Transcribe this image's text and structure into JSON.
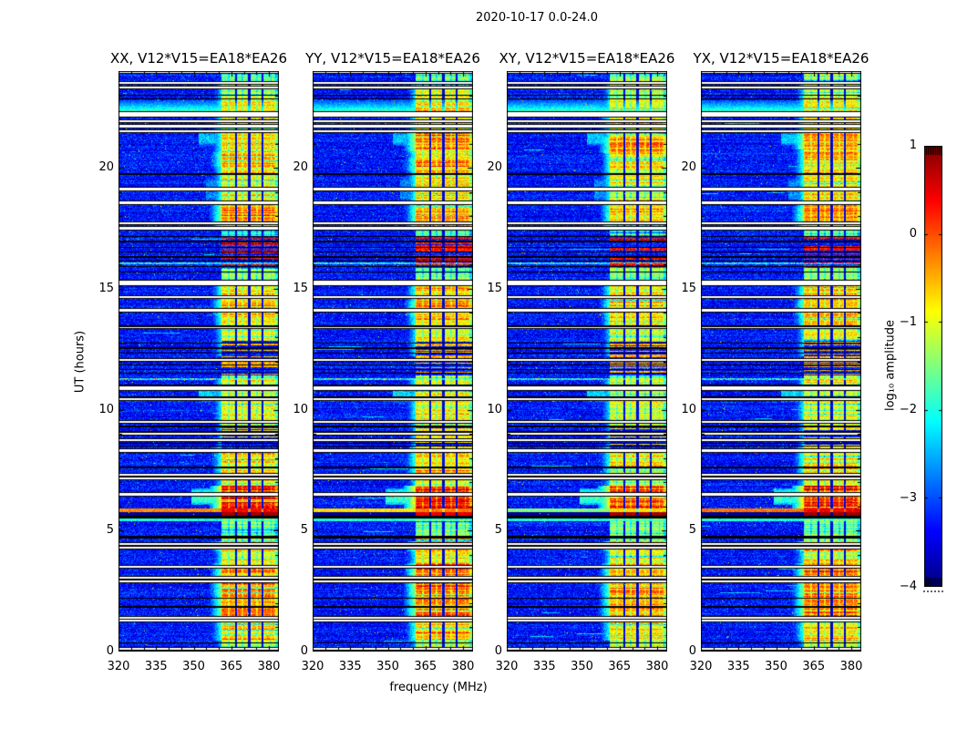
{
  "figure": {
    "title": "2020-10-17 0.0-24.0"
  },
  "chart_data": {
    "type": "heatmap",
    "title": "2020-10-17 0.0-24.0",
    "xlabel": "frequency (MHz)",
    "ylabel": "UT (hours)",
    "x_range": [
      320,
      384
    ],
    "y_range": [
      0,
      24
    ],
    "x_ticks": [
      320,
      335,
      350,
      365,
      380
    ],
    "x_minor_step": 5,
    "y_ticks": [
      0,
      5,
      10,
      15,
      20
    ],
    "y_minor_step": 1,
    "grid": false,
    "colormap": "jet",
    "colorbar": {
      "label": "log₁₀ amplitude",
      "vmin": -4,
      "vmax": 1,
      "tick_values": [
        1,
        0,
        -1,
        -2,
        -3,
        -4
      ],
      "tick_labels": [
        "1",
        "0",
        "−1",
        "−2",
        "−3",
        "−4"
      ]
    },
    "panels": [
      {
        "id": "XX",
        "label": "XX, V12*V15=EA18*EA26",
        "seed": 101,
        "bias": 0.0,
        "stripe_bg": -0.3,
        "stripe_band": 0.4,
        "under_band": 0.85,
        "extra_hot": [
          [
            17.8,
            18.45,
            0.3
          ],
          [
            20.05,
            20.65,
            0.3
          ],
          [
            13.9,
            14.5,
            0.25
          ],
          [
            2.3,
            3.5,
            0.25
          ],
          [
            1.4,
            2.2,
            0.2
          ]
        ]
      },
      {
        "id": "YY",
        "label": "YY, V12*V15=EA18*EA26",
        "seed": 202,
        "bias": 0.08,
        "stripe_bg": -0.75,
        "stripe_band": -0.2,
        "under_band": 0.5,
        "extra_hot": [
          [
            20.7,
            21.45,
            0.55
          ],
          [
            19.9,
            20.35,
            0.3
          ],
          [
            13.9,
            14.5,
            0.3
          ],
          [
            2.3,
            3.6,
            0.3
          ],
          [
            1.4,
            2.2,
            0.2
          ]
        ]
      },
      {
        "id": "XY",
        "label": "XY, V12*V15=EA18*EA26",
        "seed": 303,
        "bias": -0.05,
        "stripe_bg": -1.5,
        "stripe_band": -0.7,
        "under_band": 0.8,
        "extra_hot": [
          [
            20.6,
            21.25,
            0.45
          ],
          [
            13.9,
            14.5,
            0.2
          ],
          [
            2.3,
            3.4,
            0.2
          ],
          [
            1.4,
            2.2,
            0.15
          ]
        ]
      },
      {
        "id": "YX",
        "label": "YX, V12*V15=EA18*EA26",
        "seed": 404,
        "bias": 0.05,
        "stripe_bg": -0.2,
        "stripe_band": 0.45,
        "under_band": 0.85,
        "extra_hot": [
          [
            20.75,
            21.4,
            0.5
          ],
          [
            17.8,
            18.4,
            0.25
          ],
          [
            13.9,
            14.5,
            0.25
          ],
          [
            2.3,
            3.5,
            0.25
          ],
          [
            1.4,
            2.2,
            0.2
          ]
        ]
      }
    ],
    "noise": {
      "mean": -3.3,
      "sigma": 0.27,
      "speckle_prob": 0.0045,
      "streak_prob": 0.025
    },
    "rfi_band": {
      "f_min": 361,
      "f_max": 384,
      "columns": [
        [
          361,
          366.4
        ],
        [
          367.3,
          371.8
        ],
        [
          372.6,
          377.1
        ],
        [
          377.9,
          382.6
        ]
      ],
      "tail": [
        382.6,
        384
      ],
      "tail_drop": 0.7,
      "edge_ramp_mhz": 4.5,
      "minor_dark_lines": [
        363.9,
        369.4,
        375.2,
        380.9
      ]
    },
    "band_segments": [
      [
        23.55,
        24.0,
        -1.5
      ],
      [
        22.75,
        23.55,
        -1.15
      ],
      [
        21.6,
        22.75,
        -0.85
      ],
      [
        19.8,
        21.6,
        -0.75
      ],
      [
        18.65,
        19.8,
        -0.85
      ],
      [
        17.55,
        18.65,
        -0.6
      ],
      [
        16.1,
        17.55,
        -1.8
      ],
      [
        15.35,
        16.1,
        -1.4
      ],
      [
        13.35,
        15.35,
        -0.75
      ],
      [
        12.2,
        13.35,
        -1.1
      ],
      [
        11.3,
        12.2,
        -1.5
      ],
      [
        9.6,
        11.3,
        -1.0
      ],
      [
        8.45,
        9.6,
        -1.25
      ],
      [
        7.4,
        8.45,
        -0.7
      ],
      [
        6.85,
        7.4,
        -1.1
      ],
      [
        5.92,
        6.85,
        0.25
      ],
      [
        4.55,
        5.8,
        -1.6
      ],
      [
        4.15,
        4.55,
        -0.55
      ],
      [
        3.65,
        4.15,
        -1.0
      ],
      [
        2.25,
        3.65,
        -0.55
      ],
      [
        1.35,
        2.25,
        -0.5
      ],
      [
        0.45,
        1.35,
        -0.75
      ],
      [
        0.0,
        0.45,
        -1.3
      ]
    ],
    "white_gaps": [
      [
        23.95,
        0.07
      ],
      [
        23.5,
        0.08
      ],
      [
        23.33,
        0.06
      ],
      [
        22.2,
        0.18
      ],
      [
        21.93,
        0.08
      ],
      [
        21.72,
        0.08
      ],
      [
        21.52,
        0.08
      ],
      [
        19.12,
        0.08
      ],
      [
        18.55,
        0.1
      ],
      [
        17.72,
        0.08
      ],
      [
        17.5,
        0.08
      ],
      [
        15.25,
        0.18
      ],
      [
        14.65,
        0.08
      ],
      [
        14.12,
        0.1
      ],
      [
        13.4,
        0.06
      ],
      [
        12.05,
        0.08
      ],
      [
        10.9,
        0.16
      ],
      [
        10.45,
        0.08
      ],
      [
        9.5,
        0.08
      ],
      [
        9.02,
        0.08
      ],
      [
        8.75,
        0.08
      ],
      [
        8.3,
        0.1
      ],
      [
        7.3,
        0.08
      ],
      [
        7.15,
        0.08
      ],
      [
        6.5,
        0.08
      ],
      [
        4.45,
        0.07
      ],
      [
        4.3,
        0.07
      ],
      [
        3.5,
        0.08
      ],
      [
        3.05,
        0.07
      ],
      [
        2.9,
        0.07
      ],
      [
        1.4,
        0.08
      ],
      [
        1.28,
        0.06
      ],
      [
        0.12,
        0.06
      ]
    ],
    "black_lines": [
      [
        23.27,
        0.05
      ],
      [
        23.0,
        0.06
      ],
      [
        22.85,
        0.06
      ],
      [
        19.75,
        0.06
      ],
      [
        17.15,
        0.05
      ],
      [
        16.95,
        0.05
      ],
      [
        16.72,
        0.05
      ],
      [
        16.52,
        0.05
      ],
      [
        16.32,
        0.05
      ],
      [
        16.15,
        0.05
      ],
      [
        15.92,
        0.05
      ],
      [
        15.7,
        0.05
      ],
      [
        12.75,
        0.05
      ],
      [
        12.55,
        0.05
      ],
      [
        12.35,
        0.05
      ],
      [
        11.85,
        0.05
      ],
      [
        11.65,
        0.05
      ],
      [
        11.5,
        0.05
      ],
      [
        9.3,
        0.05
      ],
      [
        8.62,
        0.05
      ],
      [
        8.5,
        0.05
      ],
      [
        7.6,
        0.06
      ],
      [
        5.55,
        0.1
      ],
      [
        4.75,
        0.05
      ],
      [
        4.68,
        0.04
      ],
      [
        2.2,
        0.05
      ],
      [
        1.85,
        0.05
      ],
      [
        0.35,
        0.05
      ]
    ],
    "striped_band_regions": [
      [
        15.85,
        17.15,
        0.3
      ],
      [
        11.4,
        12.85,
        -0.5
      ],
      [
        8.4,
        9.35,
        -0.8
      ]
    ],
    "events": {
      "bright_stripe": {
        "t": 5.85,
        "half_dt": 0.08
      },
      "under_band_stripe": {
        "t0": 5.6,
        "t1": 5.77
      },
      "cyan_stripe": {
        "t": 5.45,
        "half_dt": 0.05,
        "value": -2.0
      },
      "cyan_fade": {
        "t0": 22.35,
        "t1": 22.78,
        "value_bottom": -1.85,
        "value_top": -3.0
      },
      "speckle_rows": [
        16.05,
        11.25
      ],
      "blobs": [
        [
          6.05,
          6.75,
          349,
          361,
          -1.9
        ],
        [
          10.3,
          10.95,
          352,
          361,
          -2.3
        ],
        [
          20.9,
          21.5,
          352,
          361,
          -2.4
        ],
        [
          18.6,
          19.6,
          355,
          361,
          -2.7
        ]
      ]
    }
  }
}
